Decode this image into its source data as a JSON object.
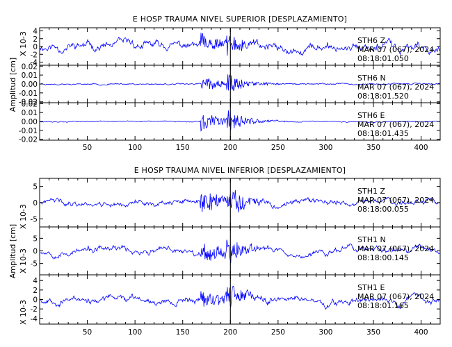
{
  "colors": {
    "trace": "#0000ff",
    "axis": "#000000",
    "marker": "#000000"
  },
  "chart_data": [
    {
      "type": "line",
      "title": "E HOSP TRAUMA NIVEL SUPERIOR [DESPLAZAMIENTO]",
      "ylabel": "Amplitud [cm]",
      "xlim": [
        0,
        420
      ],
      "xticks": [
        "50",
        "100",
        "150",
        "200",
        "250",
        "300",
        "350",
        "400"
      ],
      "event_marker_x": 200,
      "panels": [
        {
          "station": "STH6   Z",
          "date": "MAR 07 (067), 2024",
          "time": "08:18:01.050",
          "scale_label": "X 10-3",
          "ylim": [
            -4.8,
            4.8
          ],
          "yticks": [
            "4",
            "2",
            "0",
            "-2",
            "-4"
          ],
          "trace": {
            "seed": 11,
            "noise": 0.75,
            "drift": 1.3,
            "burst": 3.3
          }
        },
        {
          "station": "STH6   N",
          "date": "MAR 07 (067), 2024",
          "time": "08:18:01.520",
          "scale_label": "",
          "ylim": [
            -0.021,
            0.021
          ],
          "yticks": [
            "0.02",
            "0.01",
            "0.00",
            "-0.01",
            "-0.02"
          ],
          "trace": {
            "seed": 23,
            "noise": 0.0009,
            "drift": 0.0006,
            "burst": 0.012
          }
        },
        {
          "station": "STH6   E",
          "date": "MAR 07 (067), 2024",
          "time": "08:18:01.435",
          "scale_label": "",
          "ylim": [
            -0.021,
            0.021
          ],
          "yticks": [
            "0.02",
            "0.01",
            "0.00",
            "-0.01",
            "-0.02"
          ],
          "trace": {
            "seed": 37,
            "noise": 0.0007,
            "drift": 0.0004,
            "burst": 0.014
          }
        }
      ]
    },
    {
      "type": "line",
      "title": "E HOSP TRAUMA NIVEL INFERIOR [DESPLAZAMIENTO]",
      "ylabel": "Amplitud [cm]",
      "xlim": [
        0,
        420
      ],
      "xticks": [
        "50",
        "100",
        "150",
        "200",
        "250",
        "300",
        "350",
        "400"
      ],
      "event_marker_x": 200,
      "panels": [
        {
          "station": "STH1   Z",
          "date": "MAR 07 (067), 2024",
          "time": "08:18:00.055",
          "scale_label": "X 10-3",
          "ylim": [
            -7.5,
            7.5
          ],
          "yticks": [
            "5",
            "0",
            "-5"
          ],
          "trace": {
            "seed": 41,
            "noise": 0.7,
            "drift": 1.0,
            "burst": 5.0
          }
        },
        {
          "station": "STH1   N",
          "date": "MAR 07 (067), 2024",
          "time": "08:18:00.145",
          "scale_label": "X 10-3",
          "ylim": [
            -9.5,
            9.5
          ],
          "yticks": [
            "5",
            "0",
            "-5"
          ],
          "trace": {
            "seed": 53,
            "noise": 0.85,
            "drift": 1.6,
            "burst": 5.6
          }
        },
        {
          "station": "STH1   E",
          "date": "MAR 07 (067), 2024",
          "time": "08:18:01.165",
          "scale_label": "X 10-3",
          "ylim": [
            -5.2,
            5.2
          ],
          "yticks": [
            "4",
            "2",
            "0",
            "-2",
            "-4"
          ],
          "trace": {
            "seed": 67,
            "noise": 0.45,
            "drift": 0.9,
            "burst": 2.6
          }
        }
      ]
    }
  ]
}
